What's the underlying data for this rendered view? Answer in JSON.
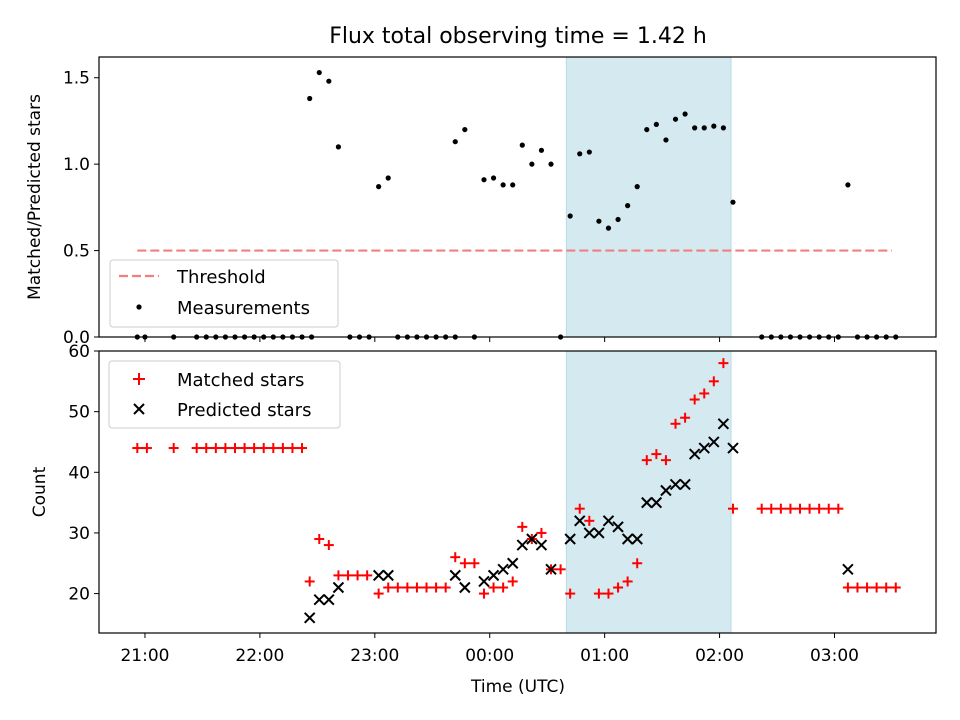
{
  "chart_data": [
    {
      "type": "scatter",
      "title": "Flux total observing time = 1.42 h",
      "xlabel": "",
      "ylabel": "Matched/Predicted stars",
      "ylim": [
        0,
        1.62
      ],
      "yticks": [
        "0.0",
        "0.5",
        "1.0",
        "1.5"
      ],
      "grid": false,
      "legend_position": "lower-left",
      "shaded_region": {
        "x_start": "00:40",
        "x_end": "02:06",
        "color": "#d4eaf0"
      },
      "series": [
        {
          "name": "Threshold",
          "kind": "dashed-line",
          "color": "#f08080",
          "x": [
            "20:56",
            "03:30"
          ],
          "y": [
            0.5,
            0.5
          ]
        },
        {
          "name": "Measurements",
          "kind": "dots",
          "color": "#000000",
          "points": [
            [
              "20:56",
              0
            ],
            [
              "21:00",
              0
            ],
            [
              "21:15",
              0
            ],
            [
              "21:27",
              0
            ],
            [
              "21:32",
              0
            ],
            [
              "21:37",
              0
            ],
            [
              "21:42",
              0
            ],
            [
              "21:47",
              0
            ],
            [
              "21:52",
              0
            ],
            [
              "21:57",
              0
            ],
            [
              "22:02",
              0
            ],
            [
              "22:07",
              0
            ],
            [
              "22:12",
              0
            ],
            [
              "22:17",
              0
            ],
            [
              "22:22",
              0
            ],
            [
              "22:27",
              0
            ],
            [
              "22:26",
              1.38
            ],
            [
              "22:31",
              1.53
            ],
            [
              "22:36",
              1.48
            ],
            [
              "22:41",
              1.1
            ],
            [
              "22:47",
              0
            ],
            [
              "22:52",
              0
            ],
            [
              "22:57",
              0
            ],
            [
              "23:02",
              0.87
            ],
            [
              "23:07",
              0.92
            ],
            [
              "23:12",
              0
            ],
            [
              "23:17",
              0
            ],
            [
              "23:22",
              0
            ],
            [
              "23:27",
              0
            ],
            [
              "23:32",
              0
            ],
            [
              "23:37",
              0
            ],
            [
              "23:42",
              0
            ],
            [
              "23:42",
              1.13
            ],
            [
              "23:47",
              1.2
            ],
            [
              "23:52",
              0
            ],
            [
              "23:57",
              0.91
            ],
            [
              "00:02",
              0.92
            ],
            [
              "00:07",
              0.88
            ],
            [
              "00:12",
              0.88
            ],
            [
              "00:17",
              1.11
            ],
            [
              "00:22",
              1.0
            ],
            [
              "00:27",
              1.08
            ],
            [
              "00:32",
              1.0
            ],
            [
              "00:37",
              0
            ],
            [
              "00:42",
              0.7
            ],
            [
              "00:47",
              1.06
            ],
            [
              "00:52",
              1.07
            ],
            [
              "00:57",
              0.67
            ],
            [
              "01:02",
              0.63
            ],
            [
              "01:07",
              0.68
            ],
            [
              "01:12",
              0.76
            ],
            [
              "01:17",
              0.87
            ],
            [
              "01:22",
              1.2
            ],
            [
              "01:27",
              1.23
            ],
            [
              "01:32",
              1.14
            ],
            [
              "01:37",
              1.26
            ],
            [
              "01:42",
              1.29
            ],
            [
              "01:47",
              1.21
            ],
            [
              "01:52",
              1.21
            ],
            [
              "01:57",
              1.22
            ],
            [
              "02:02",
              1.21
            ],
            [
              "02:07",
              0.78
            ],
            [
              "02:22",
              0
            ],
            [
              "02:27",
              0
            ],
            [
              "02:32",
              0
            ],
            [
              "02:37",
              0
            ],
            [
              "02:42",
              0
            ],
            [
              "02:47",
              0
            ],
            [
              "02:52",
              0
            ],
            [
              "02:57",
              0
            ],
            [
              "03:02",
              0
            ],
            [
              "03:07",
              0.88
            ],
            [
              "03:12",
              0
            ],
            [
              "03:17",
              0
            ],
            [
              "03:22",
              0
            ],
            [
              "03:27",
              0
            ],
            [
              "03:32",
              0
            ]
          ]
        }
      ]
    },
    {
      "type": "scatter",
      "title": "",
      "xlabel": "Time (UTC)",
      "ylabel": "Count",
      "xticks": [
        "21:00",
        "22:00",
        "23:00",
        "00:00",
        "01:00",
        "02:00",
        "03:00"
      ],
      "xlim": [
        "20:36",
        "03:53"
      ],
      "ylim": [
        13.5,
        60
      ],
      "yticks": [
        "20",
        "30",
        "40",
        "50",
        "60"
      ],
      "grid": false,
      "legend_position": "upper-left",
      "shaded_region": {
        "x_start": "00:40",
        "x_end": "02:06",
        "color": "#d4eaf0"
      },
      "series": [
        {
          "name": "Matched stars",
          "marker": "plus",
          "color": "#ff0000",
          "points": [
            [
              "20:56",
              44
            ],
            [
              "21:01",
              44
            ],
            [
              "21:15",
              44
            ],
            [
              "21:27",
              44
            ],
            [
              "21:32",
              44
            ],
            [
              "21:37",
              44
            ],
            [
              "21:42",
              44
            ],
            [
              "21:47",
              44
            ],
            [
              "21:52",
              44
            ],
            [
              "21:57",
              44
            ],
            [
              "22:02",
              44
            ],
            [
              "22:07",
              44
            ],
            [
              "22:12",
              44
            ],
            [
              "22:17",
              44
            ],
            [
              "22:22",
              44
            ],
            [
              "22:26",
              22
            ],
            [
              "22:31",
              29
            ],
            [
              "22:36",
              28
            ],
            [
              "22:41",
              23
            ],
            [
              "22:46",
              23
            ],
            [
              "22:51",
              23
            ],
            [
              "22:56",
              23
            ],
            [
              "23:02",
              20
            ],
            [
              "23:07",
              21
            ],
            [
              "23:12",
              21
            ],
            [
              "23:17",
              21
            ],
            [
              "23:22",
              21
            ],
            [
              "23:27",
              21
            ],
            [
              "23:32",
              21
            ],
            [
              "23:37",
              21
            ],
            [
              "23:42",
              26
            ],
            [
              "23:47",
              25
            ],
            [
              "23:52",
              25
            ],
            [
              "23:57",
              20
            ],
            [
              "00:02",
              21
            ],
            [
              "00:07",
              21
            ],
            [
              "00:12",
              22
            ],
            [
              "00:17",
              31
            ],
            [
              "00:22",
              29
            ],
            [
              "00:27",
              30
            ],
            [
              "00:32",
              24
            ],
            [
              "00:37",
              24
            ],
            [
              "00:42",
              20
            ],
            [
              "00:47",
              34
            ],
            [
              "00:52",
              32
            ],
            [
              "00:57",
              20
            ],
            [
              "01:02",
              20
            ],
            [
              "01:07",
              21
            ],
            [
              "01:12",
              22
            ],
            [
              "01:17",
              25
            ],
            [
              "01:22",
              42
            ],
            [
              "01:27",
              43
            ],
            [
              "01:32",
              42
            ],
            [
              "01:37",
              48
            ],
            [
              "01:42",
              49
            ],
            [
              "01:47",
              52
            ],
            [
              "01:52",
              53
            ],
            [
              "01:57",
              55
            ],
            [
              "02:02",
              58
            ],
            [
              "02:07",
              34
            ],
            [
              "02:22",
              34
            ],
            [
              "02:27",
              34
            ],
            [
              "02:32",
              34
            ],
            [
              "02:37",
              34
            ],
            [
              "02:42",
              34
            ],
            [
              "02:47",
              34
            ],
            [
              "02:52",
              34
            ],
            [
              "02:57",
              34
            ],
            [
              "03:02",
              34
            ],
            [
              "03:07",
              21
            ],
            [
              "03:12",
              21
            ],
            [
              "03:17",
              21
            ],
            [
              "03:22",
              21
            ],
            [
              "03:27",
              21
            ],
            [
              "03:32",
              21
            ]
          ]
        },
        {
          "name": "Predicted stars",
          "marker": "x",
          "color": "#000000",
          "points": [
            [
              "22:26",
              16
            ],
            [
              "22:31",
              19
            ],
            [
              "22:36",
              19
            ],
            [
              "22:41",
              21
            ],
            [
              "23:02",
              23
            ],
            [
              "23:07",
              23
            ],
            [
              "23:42",
              23
            ],
            [
              "23:47",
              21
            ],
            [
              "23:57",
              22
            ],
            [
              "00:02",
              23
            ],
            [
              "00:07",
              24
            ],
            [
              "00:12",
              25
            ],
            [
              "00:17",
              28
            ],
            [
              "00:22",
              29
            ],
            [
              "00:27",
              28
            ],
            [
              "00:32",
              24
            ],
            [
              "00:42",
              29
            ],
            [
              "00:47",
              32
            ],
            [
              "00:52",
              30
            ],
            [
              "00:57",
              30
            ],
            [
              "01:02",
              32
            ],
            [
              "01:07",
              31
            ],
            [
              "01:12",
              29
            ],
            [
              "01:17",
              29
            ],
            [
              "01:22",
              35
            ],
            [
              "01:27",
              35
            ],
            [
              "01:32",
              37
            ],
            [
              "01:37",
              38
            ],
            [
              "01:42",
              38
            ],
            [
              "01:47",
              43
            ],
            [
              "01:52",
              44
            ],
            [
              "01:57",
              45
            ],
            [
              "02:02",
              48
            ],
            [
              "02:07",
              44
            ],
            [
              "03:07",
              24
            ]
          ]
        }
      ]
    }
  ]
}
